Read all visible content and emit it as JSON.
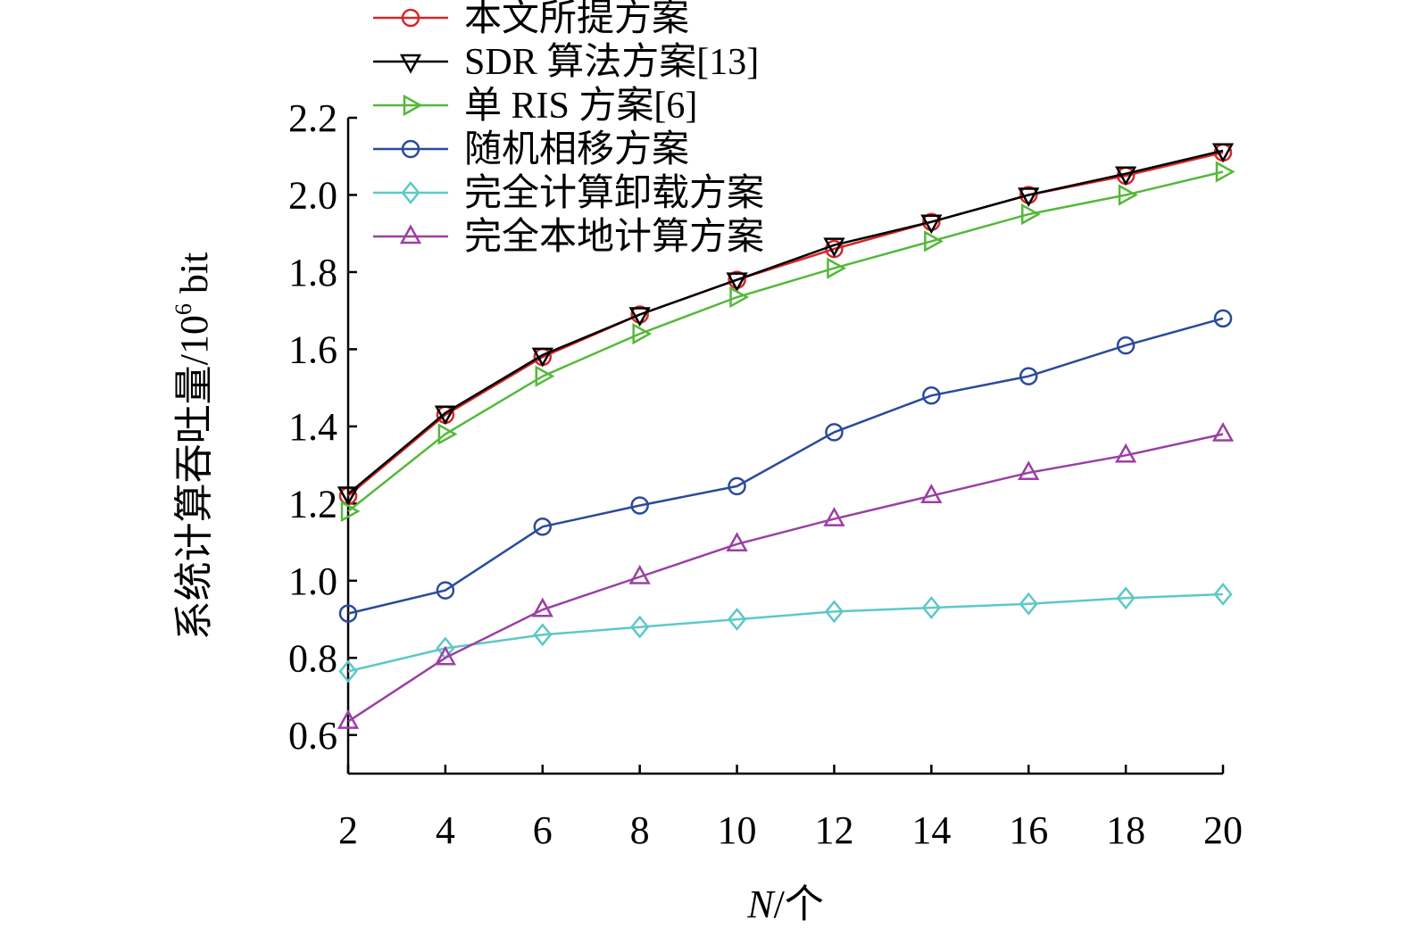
{
  "chart_data": {
    "type": "line",
    "x": [
      2,
      4,
      6,
      8,
      10,
      12,
      14,
      16,
      18,
      20
    ],
    "xlim": [
      2,
      20
    ],
    "ylim": [
      0.5,
      2.2
    ],
    "xticks": [
      2,
      4,
      6,
      8,
      10,
      12,
      14,
      16,
      18,
      20
    ],
    "yticks": [
      "0.6",
      "0.8",
      "1.0",
      "1.2",
      "1.4",
      "1.6",
      "1.8",
      "2.0",
      "2.2"
    ],
    "xlabel_italic": "N",
    "xlabel_rest": "/个",
    "ylabel_main": "系统计算吞吐量/10",
    "ylabel_sup": "6",
    "ylabel_unit": " bit",
    "grid": false,
    "legend_position": "top-left",
    "series": [
      {
        "name": "本文所提方案",
        "color": "#d62728",
        "marker": "circle",
        "values": [
          1.22,
          1.43,
          1.58,
          1.69,
          1.78,
          1.86,
          1.93,
          2.0,
          2.05,
          2.11
        ]
      },
      {
        "name": "SDR 算法方案[13]",
        "color": "#000000",
        "marker": "triangle-down",
        "values": [
          1.225,
          1.435,
          1.585,
          1.69,
          1.78,
          1.87,
          1.93,
          2.0,
          2.055,
          2.115
        ]
      },
      {
        "name": "单 RIS 方案[6]",
        "color": "#55b83a",
        "marker": "triangle-right",
        "values": [
          1.18,
          1.38,
          1.53,
          1.64,
          1.735,
          1.81,
          1.88,
          1.95,
          2.0,
          2.06
        ]
      },
      {
        "name": "随机相移方案",
        "color": "#2a4b9b",
        "marker": "circle",
        "values": [
          0.915,
          0.975,
          1.14,
          1.195,
          1.245,
          1.385,
          1.48,
          1.53,
          1.61,
          1.68
        ]
      },
      {
        "name": "完全计算卸载方案",
        "color": "#5ec8c8",
        "marker": "diamond",
        "values": [
          0.765,
          0.825,
          0.86,
          0.88,
          0.9,
          0.92,
          0.93,
          0.94,
          0.955,
          0.965
        ]
      },
      {
        "name": "完全本地计算方案",
        "color": "#9b3fa6",
        "marker": "triangle-up",
        "values": [
          0.635,
          0.8,
          0.925,
          1.01,
          1.095,
          1.16,
          1.22,
          1.28,
          1.325,
          1.38
        ]
      }
    ]
  }
}
